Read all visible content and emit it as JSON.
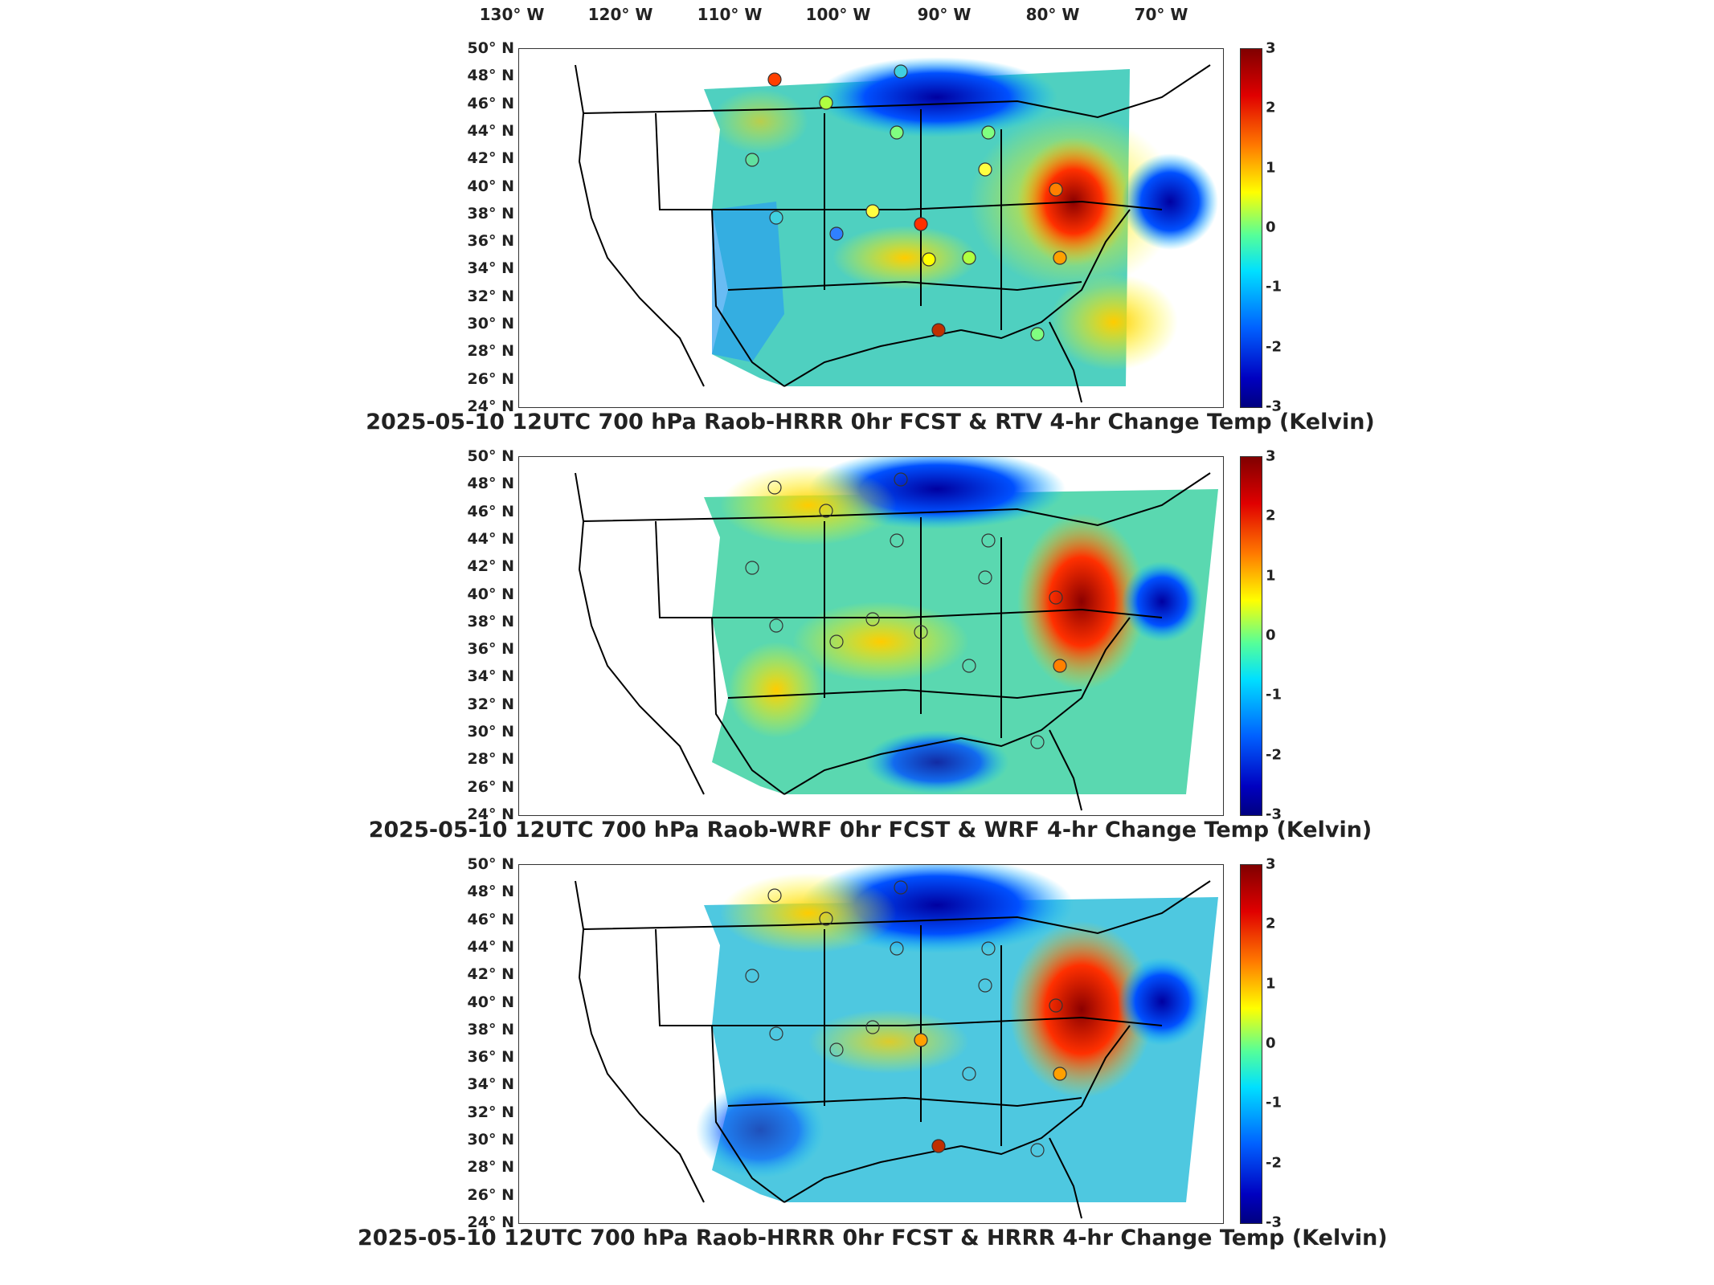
{
  "longitude_labels": [
    "130° W",
    "120° W",
    "110° W",
    "100° W",
    "90° W",
    "80° W",
    "70° W"
  ],
  "latitude_labels": [
    "50° N",
    "48° N",
    "46° N",
    "44° N",
    "42° N",
    "40° N",
    "38° N",
    "36° N",
    "34° N",
    "32° N",
    "30° N",
    "28° N",
    "26° N",
    "24° N"
  ],
  "colorbar": {
    "ticks": [
      "3",
      "2",
      "1",
      "0",
      "-1",
      "-2",
      "-3"
    ],
    "min": -3,
    "max": 3,
    "units": "Kelvin"
  },
  "panels": [
    {
      "title": "2025-05-10 12UTC 700 hPa Raob-HRRR 0hr FCST & RTV 4-hr Change Temp (Kelvin)"
    },
    {
      "title": "2025-05-10 12UTC 700 hPa Raob-WRF 0hr FCST & WRF 4-hr Change Temp (Kelvin)"
    },
    {
      "title": "2025-05-10 12UTC 700 hPa Raob-HRRR 0hr FCST & HRRR 4-hr Change Temp (Kelvin)"
    }
  ],
  "colors": {
    "warm": "#c00000",
    "cool": "#0000c0",
    "neutral": "#66ffcc"
  }
}
